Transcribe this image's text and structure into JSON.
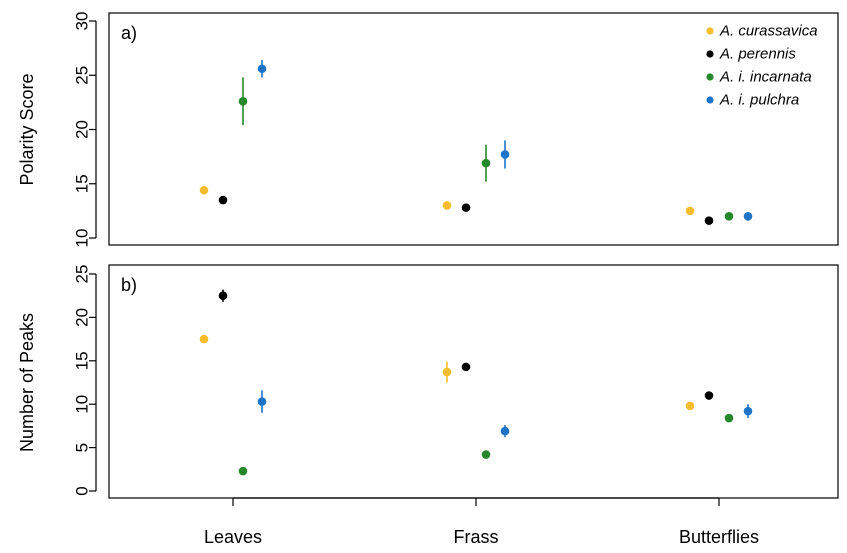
{
  "chart_data": [
    {
      "type": "scatter",
      "panel_tag": "a)",
      "ylabel": "Polarity Score",
      "ylim": [
        10,
        30
      ],
      "yticks": [
        10,
        15,
        20,
        25,
        30
      ],
      "categories": [
        "Leaves",
        "Frass",
        "Butterflies"
      ],
      "legend": {
        "position": "top-right"
      },
      "series": [
        {
          "name": "A. curassavica",
          "color": "#f5bd2e",
          "values": [
            14.4,
            13.0,
            12.5
          ],
          "err": [
            0.2,
            0.2,
            0.2
          ]
        },
        {
          "name": "A. perennis",
          "color": "#000000",
          "values": [
            13.5,
            12.8,
            11.6
          ],
          "err": [
            0.2,
            0.2,
            0.2
          ]
        },
        {
          "name": "A. i. incarnata",
          "color": "#25882a",
          "values": [
            22.6,
            16.9,
            12.0
          ],
          "err": [
            2.2,
            1.7,
            0.2
          ]
        },
        {
          "name": "A. i. pulchra",
          "color": "#1f74c8",
          "values": [
            25.6,
            17.7,
            12.0
          ],
          "err": [
            0.8,
            1.3,
            0.4
          ]
        }
      ]
    },
    {
      "type": "scatter",
      "panel_tag": "b)",
      "ylabel": "Number of Peaks",
      "ylim": [
        0,
        25
      ],
      "yticks": [
        0,
        5,
        10,
        15,
        20,
        25
      ],
      "categories": [
        "Leaves",
        "Frass",
        "Butterflies"
      ],
      "series": [
        {
          "name": "A. curassavica",
          "color": "#f5bd2e",
          "values": [
            17.5,
            13.7,
            9.8
          ],
          "err": [
            0.3,
            1.2,
            0.3
          ]
        },
        {
          "name": "A. perennis",
          "color": "#000000",
          "values": [
            22.5,
            14.3,
            11.0
          ],
          "err": [
            0.7,
            0.3,
            0.2
          ]
        },
        {
          "name": "A. i. incarnata",
          "color": "#25882a",
          "values": [
            2.3,
            4.2,
            8.4
          ],
          "err": [
            0.2,
            0.3,
            0.2
          ]
        },
        {
          "name": "A. i. pulchra",
          "color": "#1f74c8",
          "values": [
            10.3,
            6.9,
            9.2
          ],
          "err": [
            1.3,
            0.7,
            0.8
          ]
        }
      ]
    }
  ]
}
